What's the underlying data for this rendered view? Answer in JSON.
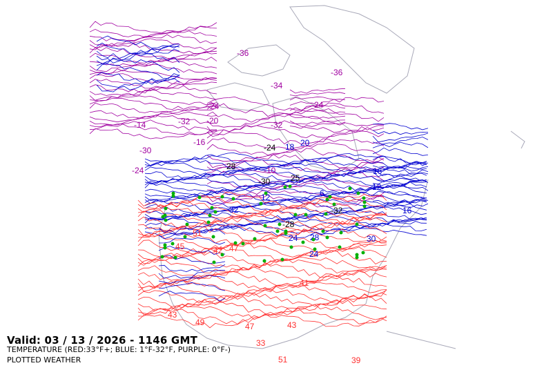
{
  "valid_label": "Valid: 03 / 13 / 2026  -  1146 GMT",
  "legend_label": "TEMPERATURE (RED:33°F+; BLUE: 1°F-32°F, PURPLE: 0°F-)",
  "plotted_label": "PLOTTED WEATHER",
  "colors": {
    "warm": "#ff3030",
    "cold": "#0000d0",
    "very_cold": "#a000a0",
    "coast": "#a8a8b8",
    "weather": "#00b000"
  },
  "labels": {
    "purple": [
      "-10",
      "-24",
      "-32",
      "-36",
      "-36",
      "-34",
      "-30",
      "-24",
      "-16",
      "-32",
      "-20",
      "-24",
      "-14"
    ],
    "blue": [
      "12",
      "16",
      "18",
      "24",
      "28",
      "30",
      "32",
      "24",
      "20",
      "16",
      "12",
      "6"
    ],
    "red": [
      "51",
      "49",
      "45",
      "47",
      "42",
      "41",
      "43",
      "39",
      "47",
      "33",
      "51",
      "43"
    ],
    "black": [
      "-28",
      "-32",
      "-30",
      "-24",
      "28",
      "25"
    ]
  }
}
